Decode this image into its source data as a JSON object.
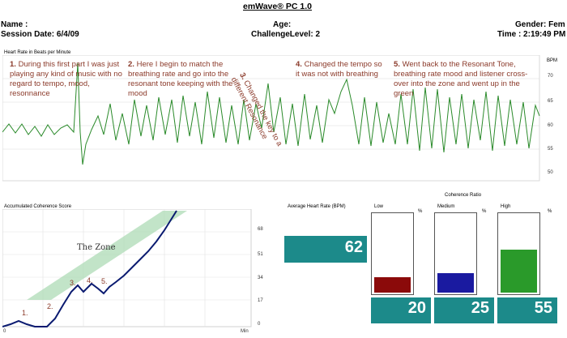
{
  "app": {
    "title": "emWave® PC 1.0"
  },
  "header": {
    "name_label": "Name :",
    "age_label": "Age:",
    "gender_label": "Gender: Fem",
    "session_date": "Session Date: 6/4/09",
    "challenge_level": "ChallengeLevel: 2",
    "time": "Time :  2:19:49 PM"
  },
  "heart_rate": {
    "title": "Heart Rate in Beats per Minute",
    "unit": "BPM",
    "ticks": [
      "70",
      "65",
      "60",
      "55",
      "50"
    ]
  },
  "annotations": [
    {
      "num": "1.",
      "text": "During this first part I was just playing any kind of music with no regard to tempo, mood, resonnance"
    },
    {
      "num": "2.",
      "text": "Here I begin to match the breathing rate and go into the resonant tone keeping with the mood"
    },
    {
      "num": "3.",
      "text": "Changed the key to a different Resonance"
    },
    {
      "num": "4.",
      "text": "Changed the tempo so it was not with breathing"
    },
    {
      "num": "5.",
      "text": "Went back to the Resonant Tone, breathing rate mood and listener cross-over into the zone and went up in the green"
    }
  ],
  "coherence": {
    "title": "Accumulated Coherence Score",
    "zone_label": "The Zone",
    "y_ticks": [
      "68",
      "51",
      "34",
      "17",
      "0"
    ],
    "x_start": "0",
    "x_unit": "Min",
    "markers": [
      "1.",
      "2.",
      "3.",
      "4.",
      "5."
    ]
  },
  "average_hr": {
    "label": "Average Heart Rate (BPM)",
    "value": "62"
  },
  "coherence_ratio": {
    "title": "Coherence Ratio",
    "percent_symbol": "%",
    "bars": [
      {
        "label": "Low",
        "value": "20",
        "percent": 20,
        "color": "#8b0a0a"
      },
      {
        "label": "Medium",
        "value": "25",
        "percent": 25,
        "color": "#1a1aa0"
      },
      {
        "label": "High",
        "value": "55",
        "percent": 55,
        "color": "#2a9a2a"
      }
    ]
  }
}
